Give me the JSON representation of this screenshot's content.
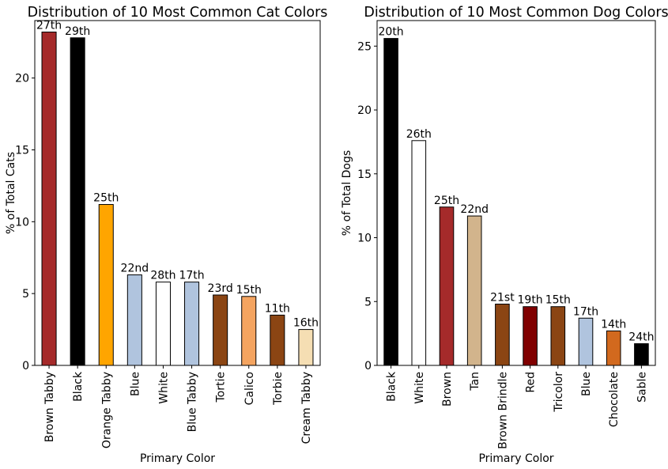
{
  "chart_data": [
    {
      "type": "bar",
      "title": "Distribution of 10 Most Common Cat Colors",
      "xlabel": "Primary Color",
      "ylabel": "% of Total Cats",
      "ylim": [
        0,
        24
      ],
      "yticks": [
        0,
        5,
        10,
        15,
        20
      ],
      "categories": [
        "Brown Tabby",
        "Black",
        "Orange Tabby",
        "Blue",
        "White",
        "Blue Tabby",
        "Tortie",
        "Calico",
        "Torbie",
        "Cream Tabby"
      ],
      "values": [
        23.2,
        22.8,
        11.2,
        6.3,
        5.8,
        5.8,
        4.9,
        4.8,
        3.5,
        2.5
      ],
      "bar_labels": [
        "27th",
        "29th",
        "25th",
        "22nd",
        "28th",
        "17th",
        "23rd",
        "15th",
        "11th",
        "16th"
      ],
      "colors": [
        "#a52a2a",
        "#000000",
        "#ffa500",
        "#b0c4de",
        "#ffffff",
        "#b0c4de",
        "#8b4513",
        "#f4a460",
        "#8b4513",
        "#f5deb3"
      ],
      "grid": false,
      "legend": "none"
    },
    {
      "type": "bar",
      "title": "Distribution of 10 Most Common Dog Colors",
      "xlabel": "Primary Color",
      "ylabel": "% of Total Dogs",
      "ylim": [
        0,
        27
      ],
      "yticks": [
        0,
        5,
        10,
        15,
        20,
        25
      ],
      "categories": [
        "Black",
        "White",
        "Brown",
        "Tan",
        "Brown Brindle",
        "Red",
        "Tricolor",
        "Blue",
        "Chocolate",
        "Sable"
      ],
      "values": [
        25.6,
        17.6,
        12.4,
        11.7,
        4.8,
        4.6,
        4.6,
        3.7,
        2.7,
        1.7
      ],
      "bar_labels": [
        "20th",
        "26th",
        "25th",
        "22nd",
        "21st",
        "19th",
        "15th",
        "17th",
        "14th",
        "24th"
      ],
      "colors": [
        "#000000",
        "#ffffff",
        "#a52a2a",
        "#d2b48c",
        "#8b4513",
        "#800000",
        "#8b4513",
        "#b0c4de",
        "#d2691e",
        "#000000"
      ],
      "grid": false,
      "legend": "none"
    }
  ]
}
